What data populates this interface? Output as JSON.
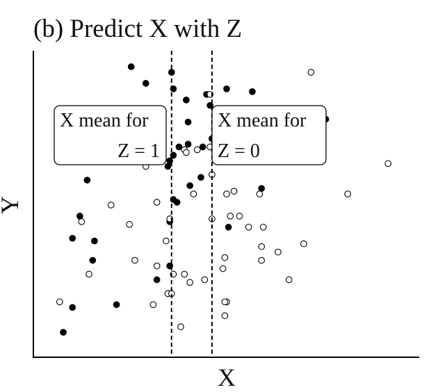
{
  "chart_data": {
    "type": "scatter",
    "title": "(b) Predict X with Z",
    "xlabel": "X",
    "ylabel": "Y",
    "xlim": [
      0,
      100
    ],
    "ylim": [
      0,
      100
    ],
    "grid": false,
    "ticks_shown": false,
    "reference_lines": [
      {
        "x": 35,
        "style": "dashed",
        "label_line1": "X mean for",
        "label_line2": "Z = 1"
      },
      {
        "x": 46,
        "style": "dashed",
        "label_line1": "X mean for",
        "label_line2": "Z = 0"
      }
    ],
    "series": [
      {
        "marker": "filled",
        "color": "#000000",
        "points": [
          {
            "x": 24,
            "y": 100
          },
          {
            "x": 28,
            "y": 94
          },
          {
            "x": 35,
            "y": 98
          },
          {
            "x": 35.5,
            "y": 92
          },
          {
            "x": 39,
            "y": 88
          },
          {
            "x": 44.5,
            "y": 90
          },
          {
            "x": 45.5,
            "y": 86
          },
          {
            "x": 50,
            "y": 92
          },
          {
            "x": 57,
            "y": 91
          },
          {
            "x": 77,
            "y": 81
          },
          {
            "x": 35.5,
            "y": 68
          },
          {
            "x": 37,
            "y": 71
          },
          {
            "x": 39.5,
            "y": 80
          },
          {
            "x": 39.5,
            "y": 72
          },
          {
            "x": 43.5,
            "y": 71
          },
          {
            "x": 46,
            "y": 74
          },
          {
            "x": 34,
            "y": 64
          },
          {
            "x": 34.5,
            "y": 66
          },
          {
            "x": 12,
            "y": 59
          },
          {
            "x": 40,
            "y": 57
          },
          {
            "x": 43,
            "y": 60
          },
          {
            "x": 35.5,
            "y": 52
          },
          {
            "x": 36.5,
            "y": 51
          },
          {
            "x": 34.5,
            "y": 44
          },
          {
            "x": 10,
            "y": 46
          },
          {
            "x": 8,
            "y": 38
          },
          {
            "x": 14,
            "y": 37
          },
          {
            "x": 13.5,
            "y": 30
          },
          {
            "x": 34.5,
            "y": 28
          },
          {
            "x": 31,
            "y": 23
          },
          {
            "x": 20,
            "y": 14
          },
          {
            "x": 8,
            "y": 13
          },
          {
            "x": 5.5,
            "y": 4
          },
          {
            "x": 59.5,
            "y": 56
          },
          {
            "x": 50.5,
            "y": 42
          }
        ]
      },
      {
        "marker": "open",
        "color": "#000000",
        "points": [
          {
            "x": 73,
            "y": 98
          },
          {
            "x": 45.5,
            "y": 90
          },
          {
            "x": 38.5,
            "y": 70
          },
          {
            "x": 39,
            "y": 69
          },
          {
            "x": 45.5,
            "y": 71
          },
          {
            "x": 42,
            "y": 70
          },
          {
            "x": 28,
            "y": 64
          },
          {
            "x": 94,
            "y": 65
          },
          {
            "x": 46,
            "y": 61
          },
          {
            "x": 41,
            "y": 54
          },
          {
            "x": 50,
            "y": 54
          },
          {
            "x": 52,
            "y": 55
          },
          {
            "x": 59,
            "y": 54
          },
          {
            "x": 83,
            "y": 54
          },
          {
            "x": 31,
            "y": 51
          },
          {
            "x": 18.5,
            "y": 50
          },
          {
            "x": 10.5,
            "y": 44
          },
          {
            "x": 51,
            "y": 46
          },
          {
            "x": 53.5,
            "y": 46
          },
          {
            "x": 34.5,
            "y": 45
          },
          {
            "x": 23.5,
            "y": 43
          },
          {
            "x": 46,
            "y": 45
          },
          {
            "x": 56,
            "y": 42
          },
          {
            "x": 60,
            "y": 42
          },
          {
            "x": 33.5,
            "y": 37
          },
          {
            "x": 59.5,
            "y": 35
          },
          {
            "x": 64,
            "y": 33
          },
          {
            "x": 71,
            "y": 36
          },
          {
            "x": 49.5,
            "y": 31
          },
          {
            "x": 25,
            "y": 30
          },
          {
            "x": 59.5,
            "y": 30
          },
          {
            "x": 31,
            "y": 28
          },
          {
            "x": 35.5,
            "y": 25
          },
          {
            "x": 38.5,
            "y": 25
          },
          {
            "x": 49,
            "y": 27
          },
          {
            "x": 40,
            "y": 22
          },
          {
            "x": 12.5,
            "y": 25
          },
          {
            "x": 44,
            "y": 23
          },
          {
            "x": 67,
            "y": 23
          },
          {
            "x": 34,
            "y": 18
          },
          {
            "x": 35,
            "y": 18
          },
          {
            "x": 30,
            "y": 14
          },
          {
            "x": 50,
            "y": 15
          },
          {
            "x": 49.5,
            "y": 15
          },
          {
            "x": 4.5,
            "y": 15
          },
          {
            "x": 37.5,
            "y": 6
          },
          {
            "x": 49.5,
            "y": 10
          }
        ]
      }
    ]
  }
}
